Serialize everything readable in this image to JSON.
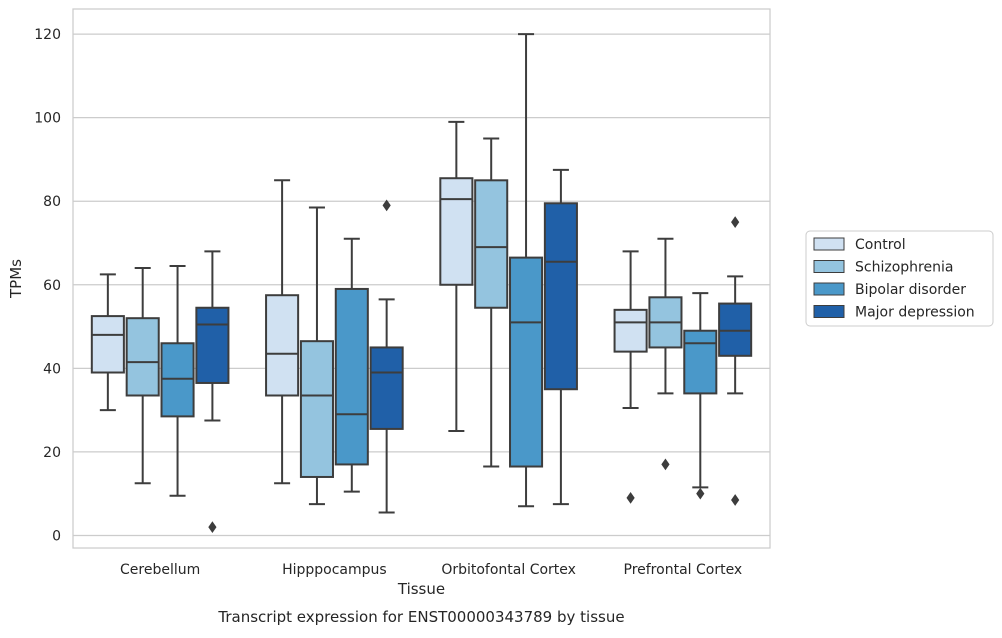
{
  "chart_data": {
    "type": "box",
    "xlabel": "Tissue",
    "ylabel": "TPMs",
    "caption": "Transcript expression for ENST00000343789 by tissue",
    "ylim": [
      -3,
      126
    ],
    "yticks": [
      0,
      20,
      40,
      60,
      80,
      100,
      120
    ],
    "grid": "horizontal",
    "legend_position": "right",
    "categories": [
      "Cerebellum",
      "Hipppocampus",
      "Orbitofontal Cortex",
      "Prefrontal Cortex"
    ],
    "series": [
      {
        "name": "Control",
        "color": "#d0e1f2",
        "boxes": [
          {
            "whisker_low": 30,
            "q1": 39,
            "median": 48,
            "q3": 52.5,
            "whisker_high": 62.5,
            "outliers": []
          },
          {
            "whisker_low": 12.5,
            "q1": 33.5,
            "median": 43.5,
            "q3": 57.5,
            "whisker_high": 85,
            "outliers": []
          },
          {
            "whisker_low": 25,
            "q1": 60,
            "median": 80.5,
            "q3": 85.5,
            "whisker_high": 99,
            "outliers": []
          },
          {
            "whisker_low": 30.5,
            "q1": 44,
            "median": 51,
            "q3": 54,
            "whisker_high": 68,
            "outliers": [
              9
            ]
          }
        ]
      },
      {
        "name": "Schizophrenia",
        "color": "#94c4df",
        "boxes": [
          {
            "whisker_low": 12.5,
            "q1": 33.5,
            "median": 41.5,
            "q3": 52,
            "whisker_high": 64,
            "outliers": []
          },
          {
            "whisker_low": 7.5,
            "q1": 14,
            "median": 33.5,
            "q3": 46.5,
            "whisker_high": 78.5,
            "outliers": []
          },
          {
            "whisker_low": 16.5,
            "q1": 54.5,
            "median": 69,
            "q3": 85,
            "whisker_high": 95,
            "outliers": []
          },
          {
            "whisker_low": 34,
            "q1": 45,
            "median": 51,
            "q3": 57,
            "whisker_high": 71,
            "outliers": [
              17
            ]
          }
        ]
      },
      {
        "name": "Bipolar disorder",
        "color": "#4a98c9",
        "boxes": [
          {
            "whisker_low": 9.5,
            "q1": 28.5,
            "median": 37.5,
            "q3": 46,
            "whisker_high": 64.5,
            "outliers": []
          },
          {
            "whisker_low": 10.5,
            "q1": 17,
            "median": 29,
            "q3": 59,
            "whisker_high": 71,
            "outliers": []
          },
          {
            "whisker_low": 7,
            "q1": 16.5,
            "median": 51,
            "q3": 66.5,
            "whisker_high": 120,
            "outliers": []
          },
          {
            "whisker_low": 11.5,
            "q1": 34,
            "median": 46,
            "q3": 49,
            "whisker_high": 58,
            "outliers": [
              10
            ]
          }
        ]
      },
      {
        "name": "Major depression",
        "color": "#2060a8",
        "boxes": [
          {
            "whisker_low": 27.5,
            "q1": 36.5,
            "median": 50.5,
            "q3": 54.5,
            "whisker_high": 68,
            "outliers": [
              2
            ]
          },
          {
            "whisker_low": 5.5,
            "q1": 25.5,
            "median": 39,
            "q3": 45,
            "whisker_high": 56.5,
            "outliers": [
              79
            ]
          },
          {
            "whisker_low": 7.5,
            "q1": 35,
            "median": 65.5,
            "q3": 79.5,
            "whisker_high": 87.5,
            "outliers": []
          },
          {
            "whisker_low": 34,
            "q1": 43,
            "median": 49,
            "q3": 55.5,
            "whisker_high": 62,
            "outliers": [
              75,
              8.5
            ]
          }
        ]
      }
    ]
  }
}
